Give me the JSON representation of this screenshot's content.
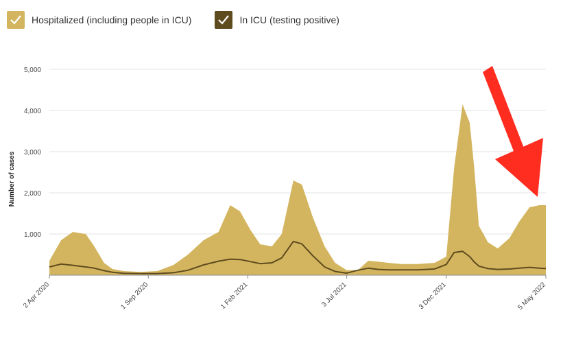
{
  "legend": {
    "items": [
      {
        "label": "Hospitalized (including people in ICU)",
        "color": "#d4b55f",
        "icon": "check-icon"
      },
      {
        "label": "In ICU (testing positive)",
        "color": "#5e4b1e",
        "icon": "check-icon"
      }
    ]
  },
  "annotation": {
    "type": "arrow",
    "color": "#ff2d20",
    "points_to": "5 May 2022"
  },
  "chart_data": {
    "type": "area",
    "ylabel": "Number of cases",
    "ylim": [
      0,
      5000
    ],
    "yticks": [
      1000,
      2000,
      3000,
      4000,
      5000
    ],
    "ytick_labels": [
      "1,000",
      "2,000",
      "3,000",
      "4,000",
      "5,000"
    ],
    "grid": true,
    "legend_position": "top-left",
    "xtick_labels": [
      "2 Apr 2020",
      "1 Sep 2020",
      "1 Feb 2021",
      "3 Jul 2021",
      "3 Dec 2021",
      "5 May 2022"
    ],
    "xticks": [
      "2020-04-02",
      "2020-09-01",
      "2021-02-01",
      "2021-07-03",
      "2021-12-03",
      "2022-05-05"
    ],
    "x": [
      "2020-04-02",
      "2020-04-20",
      "2020-05-08",
      "2020-05-28",
      "2020-06-10",
      "2020-06-25",
      "2020-07-08",
      "2020-07-25",
      "2020-08-20",
      "2020-09-15",
      "2020-10-10",
      "2020-11-01",
      "2020-11-25",
      "2020-12-18",
      "2021-01-05",
      "2021-01-20",
      "2021-02-05",
      "2021-02-20",
      "2021-03-10",
      "2021-03-25",
      "2021-04-12",
      "2021-04-25",
      "2021-05-12",
      "2021-05-30",
      "2021-06-15",
      "2021-07-03",
      "2021-07-20",
      "2021-08-05",
      "2021-08-20",
      "2021-09-05",
      "2021-09-25",
      "2021-10-20",
      "2021-11-15",
      "2021-12-03",
      "2021-12-15",
      "2021-12-28",
      "2022-01-08",
      "2022-01-15",
      "2022-01-22",
      "2022-02-05",
      "2022-02-20",
      "2022-03-10",
      "2022-03-25",
      "2022-04-10",
      "2022-04-25",
      "2022-05-05"
    ],
    "series": [
      {
        "name": "Hospitalized (including people in ICU)",
        "color": "#d4b55f",
        "values": [
          350,
          850,
          1050,
          1000,
          700,
          300,
          150,
          100,
          80,
          100,
          250,
          500,
          850,
          1050,
          1700,
          1550,
          1100,
          750,
          700,
          1000,
          2300,
          2200,
          1400,
          700,
          300,
          120,
          120,
          350,
          330,
          300,
          270,
          270,
          300,
          450,
          2600,
          4150,
          3700,
          2600,
          1200,
          800,
          650,
          900,
          1300,
          1650,
          1700,
          1700
        ]
      },
      {
        "name": "In ICU (testing positive)",
        "color": "#5e4b1e",
        "values": [
          200,
          270,
          240,
          200,
          170,
          110,
          70,
          45,
          40,
          40,
          60,
          120,
          250,
          340,
          390,
          380,
          330,
          280,
          300,
          420,
          820,
          760,
          470,
          200,
          90,
          50,
          120,
          170,
          140,
          130,
          130,
          130,
          150,
          260,
          550,
          580,
          450,
          320,
          220,
          160,
          140,
          150,
          170,
          190,
          170,
          160
        ]
      }
    ]
  }
}
